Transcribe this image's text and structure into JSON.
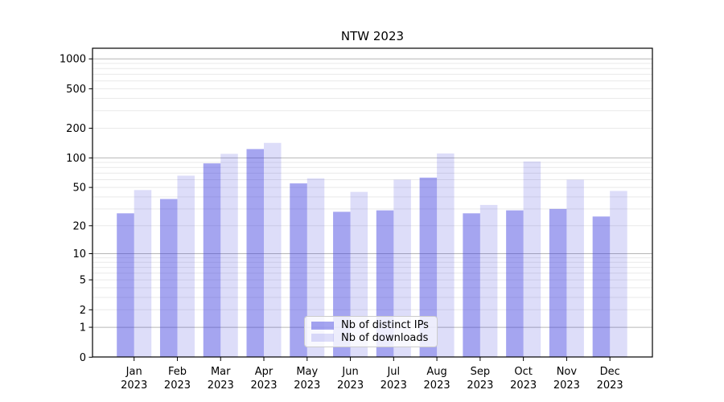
{
  "title": "NTW 2023",
  "legend": {
    "items": [
      {
        "label": "Nb of distinct IPs",
        "series_key": "ips"
      },
      {
        "label": "Nb of downloads",
        "series_key": "downloads"
      }
    ]
  },
  "y_axis": {
    "ticks": [
      {
        "value": 1000,
        "label": "1000"
      },
      {
        "value": 500,
        "label": "500"
      },
      {
        "value": 200,
        "label": "200"
      },
      {
        "value": 100,
        "label": "100"
      },
      {
        "value": 50,
        "label": "50"
      },
      {
        "value": 20,
        "label": "20"
      },
      {
        "value": 10,
        "label": "10"
      },
      {
        "value": 5,
        "label": "5"
      },
      {
        "value": 2,
        "label": "2"
      },
      {
        "value": 1,
        "label": "1"
      },
      {
        "value": 0,
        "label": "0"
      }
    ]
  },
  "x_axis": {
    "month_labels": [
      "Jan",
      "Feb",
      "Mar",
      "Apr",
      "May",
      "Jun",
      "Jul",
      "Aug",
      "Sep",
      "Oct",
      "Nov",
      "Dec"
    ],
    "year_label": "2023"
  },
  "grid": {
    "major_values": [
      1,
      10,
      100,
      1000
    ],
    "minor_values": [
      2,
      3,
      4,
      5,
      6,
      7,
      8,
      9,
      20,
      30,
      40,
      50,
      60,
      70,
      80,
      90,
      200,
      300,
      400,
      500,
      600,
      700,
      800,
      900
    ]
  },
  "colors": {
    "ips_bar": "rgba(55,55,222,0.45)",
    "downloads_bar": "rgba(55,55,222,0.17)",
    "grid_major": "#b6b6b6",
    "grid_minor": "#e9e9e9",
    "axis": "#000000",
    "text": "#000000"
  },
  "chart_data": {
    "type": "bar",
    "title": "NTW 2023",
    "categories": [
      "Jan 2023",
      "Feb 2023",
      "Mar 2023",
      "Apr 2023",
      "May 2023",
      "Jun 2023",
      "Jul 2023",
      "Aug 2023",
      "Sep 2023",
      "Oct 2023",
      "Nov 2023",
      "Dec 2023"
    ],
    "series": [
      {
        "name": "Nb of distinct IPs",
        "values": [
          27,
          38,
          88,
          123,
          55,
          28,
          29,
          63,
          27,
          29,
          30,
          25
        ]
      },
      {
        "name": "Nb of downloads",
        "values": [
          47,
          66,
          110,
          142,
          62,
          45,
          60,
          111,
          33,
          92,
          60,
          46
        ]
      }
    ],
    "xlabel": "",
    "ylabel": "",
    "yscale": "log1p",
    "ylim": [
      0,
      1285
    ],
    "y_ticks": [
      0,
      1,
      2,
      5,
      10,
      20,
      50,
      100,
      200,
      500,
      1000
    ],
    "grid": "horizontal",
    "legend_position": "lower center"
  }
}
